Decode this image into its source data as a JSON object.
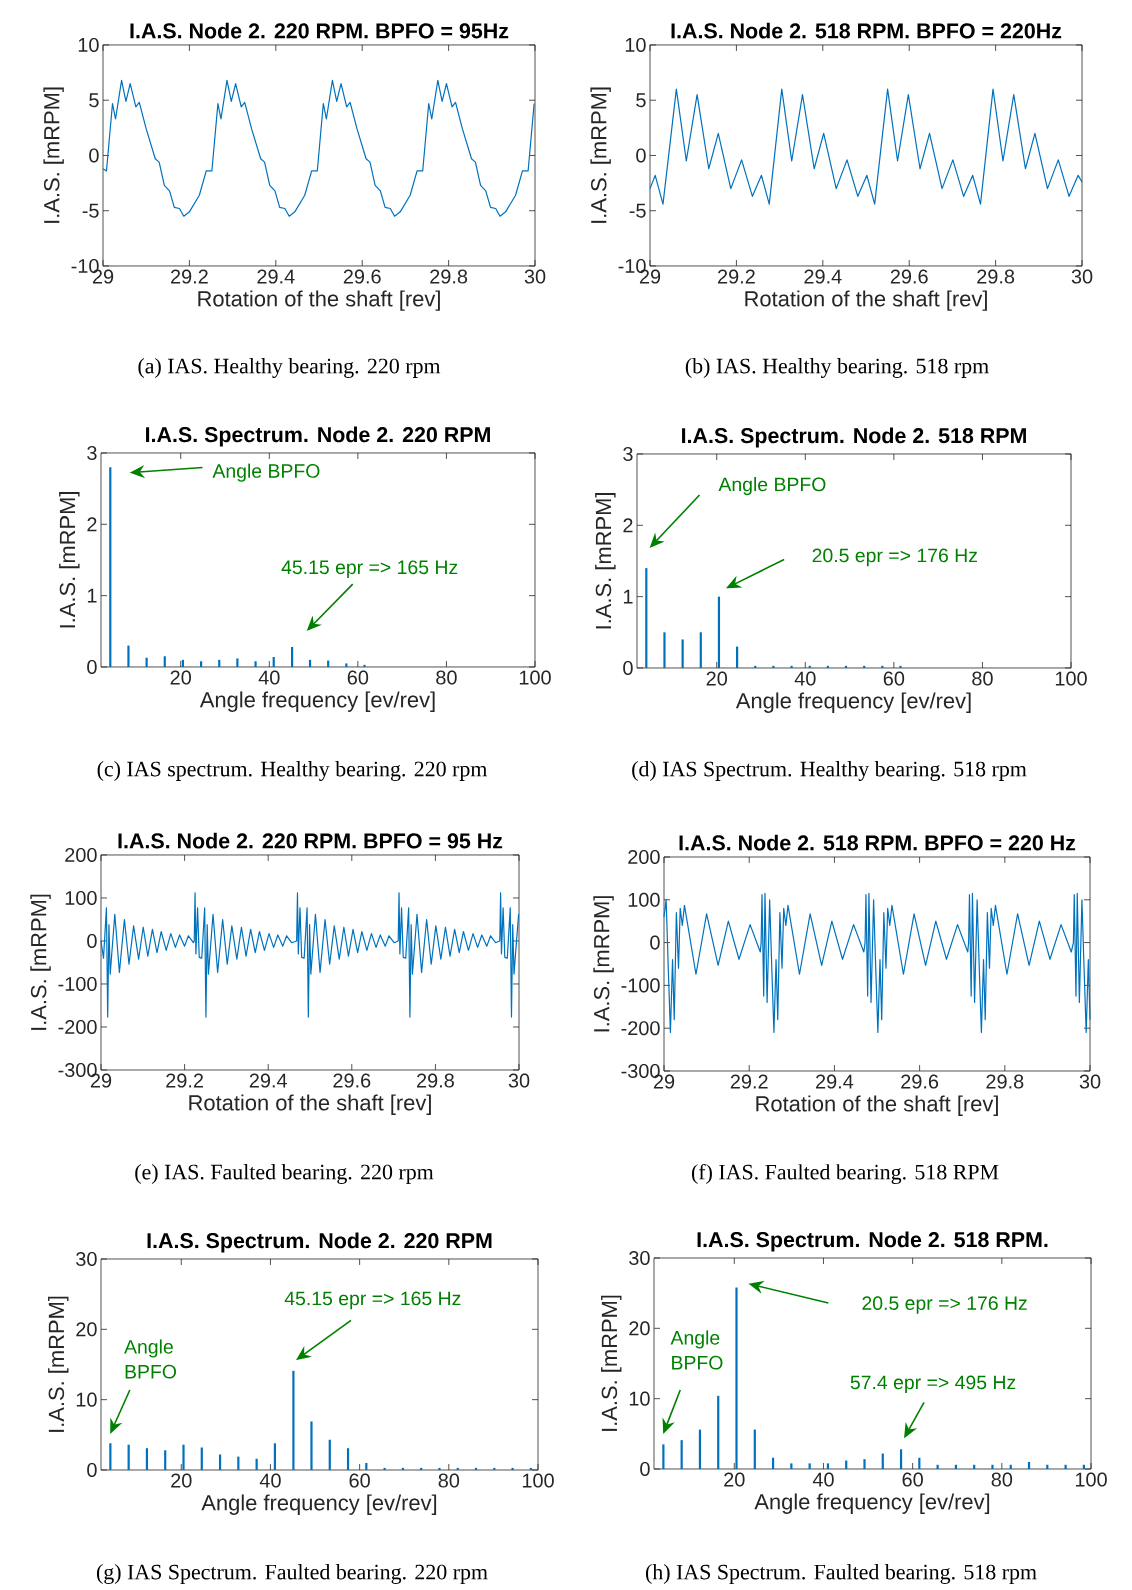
{
  "chart_data": [
    {
      "type": "line",
      "title": "I.A.S. Node 2. 220 RPM. BPFO = 95Hz",
      "xlabel": "Rotation of the shaft [rev]",
      "ylabel": "I.A.S. [mRPM]",
      "color": "#0072bd",
      "xlim": [
        29,
        30
      ],
      "ylim": [
        -10,
        10
      ],
      "xticks": [
        29,
        29.2,
        29.4,
        29.6,
        29.8,
        30
      ],
      "yticks": [
        -10,
        -5,
        0,
        5,
        10
      ],
      "x": [
        29.0,
        29.008,
        29.014,
        29.022,
        29.029,
        29.043,
        29.053,
        29.063,
        29.076,
        29.084,
        29.1,
        29.121,
        29.13,
        29.142,
        29.154,
        29.165,
        29.177,
        29.187,
        29.2,
        29.223,
        29.239,
        29.252,
        29.258,
        29.266,
        29.273,
        29.287,
        29.297,
        29.307,
        29.32,
        29.328,
        29.344,
        29.365,
        29.374,
        29.386,
        29.398,
        29.409,
        29.421,
        29.431,
        29.444,
        29.467,
        29.483,
        29.496,
        29.502,
        29.51,
        29.517,
        29.531,
        29.541,
        29.551,
        29.564,
        29.572,
        29.588,
        29.609,
        29.618,
        29.63,
        29.642,
        29.653,
        29.665,
        29.675,
        29.688,
        29.711,
        29.727,
        29.74,
        29.746,
        29.754,
        29.761,
        29.775,
        29.785,
        29.795,
        29.808,
        29.816,
        29.832,
        29.853,
        29.862,
        29.874,
        29.886,
        29.897,
        29.909,
        29.919,
        29.932,
        29.955,
        29.971,
        29.984,
        29.99,
        29.998
      ],
      "values": [
        -1.2,
        -1.4,
        1.2,
        4.7,
        3.3,
        6.8,
        4.9,
        6.5,
        4.4,
        4.8,
        2.4,
        -0.3,
        -0.6,
        -2.7,
        -3.2,
        -4.7,
        -4.8,
        -5.5,
        -5.1,
        -3.6,
        -1.4,
        -1.4,
        1.2,
        4.7,
        3.3,
        6.8,
        4.9,
        6.5,
        4.4,
        4.8,
        2.4,
        -0.3,
        -0.6,
        -2.7,
        -3.2,
        -4.7,
        -4.8,
        -5.5,
        -5.1,
        -3.6,
        -1.4,
        -1.4,
        1.2,
        4.7,
        3.3,
        6.8,
        4.9,
        6.5,
        4.4,
        4.8,
        2.4,
        -0.3,
        -0.6,
        -2.7,
        -3.2,
        -4.7,
        -4.8,
        -5.5,
        -5.1,
        -3.6,
        -1.4,
        -1.4,
        1.2,
        4.7,
        3.3,
        6.8,
        4.9,
        6.5,
        4.4,
        4.8,
        2.4,
        -0.3,
        -0.6,
        -2.7,
        -3.2,
        -4.7,
        -4.8,
        -5.5,
        -5.1,
        -3.6,
        -1.4,
        -1.4,
        1.2,
        4.7
      ],
      "annotations": [
        "(a)  IAS. Healthy bearing. 220 rpm"
      ]
    },
    {
      "type": "line",
      "title": "I.A.S. Node 2. 518 RPM. BPFO = 220Hz",
      "xlabel": "Rotation of the shaft [rev]",
      "ylabel": "I.A.S. [mRPM]",
      "color": "#0072bd",
      "xlim": [
        29,
        30
      ],
      "ylim": [
        -10,
        10
      ],
      "xticks": [
        29,
        29.2,
        29.4,
        29.6,
        29.8,
        30
      ],
      "yticks": [
        -10,
        -5,
        0,
        5,
        10
      ],
      "x": [
        29.0,
        29.012,
        29.03,
        29.061,
        29.084,
        29.109,
        29.136,
        29.158,
        29.187,
        29.212,
        29.237,
        29.258,
        29.276,
        29.305,
        29.328,
        29.353,
        29.38,
        29.402,
        29.431,
        29.456,
        29.481,
        29.502,
        29.52,
        29.55,
        29.573,
        29.598,
        29.625,
        29.647,
        29.676,
        29.701,
        29.726,
        29.747,
        29.765,
        29.794,
        29.817,
        29.842,
        29.869,
        29.891,
        29.92,
        29.945,
        29.97,
        29.991,
        30.0
      ],
      "values": [
        -3.0,
        -1.8,
        -4.4,
        6.0,
        -0.5,
        5.5,
        -1.2,
        2.0,
        -3.0,
        -0.4,
        -3.7,
        -1.8,
        -4.4,
        6.0,
        -0.5,
        5.5,
        -1.2,
        2.0,
        -3.0,
        -0.4,
        -3.7,
        -1.8,
        -4.4,
        6.0,
        -0.5,
        5.5,
        -1.2,
        2.0,
        -3.0,
        -0.4,
        -3.7,
        -1.8,
        -4.4,
        6.0,
        -0.5,
        5.5,
        -1.2,
        2.0,
        -3.0,
        -0.4,
        -3.7,
        -1.8,
        -2.4
      ],
      "annotations": [
        "(b)  IAS. Healthy bearing. 518 rpm"
      ]
    },
    {
      "type": "bar",
      "title": "I.A.S. Spectrum. Node 2. 220 RPM",
      "xlabel": "Angle frequency [ev/rev]",
      "ylabel": "I.A.S. [mRPM]",
      "color": "#0072bd",
      "xlim": [
        2,
        100
      ],
      "ylim": [
        0,
        3
      ],
      "xticks": [
        20,
        40,
        60,
        80,
        100
      ],
      "yticks": [
        0,
        1,
        2,
        3
      ],
      "x": [
        4.1,
        8.2,
        12.3,
        16.4,
        20.5,
        24.6,
        28.7,
        32.8,
        36.9,
        41.0,
        45.15,
        49.2,
        53.3,
        57.4,
        61.5
      ],
      "values": [
        2.8,
        0.3,
        0.13,
        0.15,
        0.1,
        0.08,
        0.1,
        0.12,
        0.08,
        0.14,
        0.28,
        0.1,
        0.09,
        0.05,
        0.03
      ],
      "annotations": [
        "Angle BPFO",
        "45.15 epr => 165 Hz",
        "(c)  IAS spectrum. Healthy bearing. 220 rpm"
      ]
    },
    {
      "type": "bar",
      "title": "I.A.S. Spectrum. Node 2. 518 RPM",
      "xlabel": "Angle frequency [ev/rev]",
      "ylabel": "I.A.S. [mRPM]",
      "color": "#0072bd",
      "xlim": [
        2,
        100
      ],
      "ylim": [
        0,
        3
      ],
      "xticks": [
        20,
        40,
        60,
        80,
        100
      ],
      "yticks": [
        0,
        1,
        2,
        3
      ],
      "x": [
        4.1,
        8.2,
        12.3,
        16.4,
        20.5,
        24.6,
        28.7,
        32.8,
        36.9,
        41.0,
        45.1,
        49.2,
        53.3,
        57.4,
        61.5
      ],
      "values": [
        1.4,
        0.5,
        0.4,
        0.5,
        1.0,
        0.3,
        0.03,
        0.03,
        0.03,
        0.03,
        0.03,
        0.03,
        0.03,
        0.03,
        0.03
      ],
      "annotations": [
        "Angle BPFO",
        "20.5 epr => 176 Hz",
        "(d)  IAS Spectrum. Healthy bearing. 518 rpm"
      ]
    },
    {
      "type": "line",
      "title": "I.A.S. Node 2. 220 RPM. BPFO = 95 Hz",
      "xlabel": "Rotation of the shaft [rev]",
      "ylabel": "I.A.S. [mRPM]",
      "color": "#0072bd",
      "xlim": [
        29,
        30
      ],
      "ylim": [
        -300,
        200
      ],
      "xticks": [
        29,
        29.2,
        29.4,
        29.6,
        29.8,
        30
      ],
      "yticks": [
        -300,
        -200,
        -100,
        0,
        100,
        200
      ],
      "x": [
        29.0,
        29.006,
        29.013,
        29.016,
        29.019,
        29.022,
        29.033,
        29.044,
        29.056,
        29.067,
        29.078,
        29.09,
        29.101,
        29.112,
        29.123,
        29.134,
        29.144,
        29.156,
        29.167,
        29.178,
        29.188,
        29.2,
        29.209,
        29.221,
        29.223,
        29.225,
        29.227,
        29.231,
        29.235,
        29.241,
        29.248,
        29.251,
        29.254,
        29.257,
        29.268,
        29.279,
        29.291,
        29.302,
        29.313,
        29.325,
        29.336,
        29.347,
        29.358,
        29.369,
        29.379,
        29.391,
        29.402,
        29.413,
        29.423,
        29.435,
        29.444,
        29.456,
        29.468,
        29.47,
        29.472,
        29.476,
        29.48,
        29.486,
        29.493,
        29.496,
        29.499,
        29.502,
        29.513,
        29.524,
        29.536,
        29.547,
        29.558,
        29.57,
        29.581,
        29.592,
        29.603,
        29.614,
        29.624,
        29.636,
        29.647,
        29.658,
        29.668,
        29.68,
        29.689,
        29.701,
        29.711,
        29.713,
        29.715,
        29.719,
        29.723,
        29.729,
        29.736,
        29.739,
        29.742,
        29.745,
        29.756,
        29.767,
        29.779,
        29.79,
        29.801,
        29.813,
        29.824,
        29.835,
        29.846,
        29.857,
        29.867,
        29.879,
        29.89,
        29.901,
        29.911,
        29.923,
        29.932,
        29.944,
        29.954,
        29.956,
        29.958,
        29.962,
        29.966,
        29.972,
        29.979,
        29.982,
        29.985,
        29.988,
        29.999
      ],
      "values": [
        0,
        -40,
        77,
        -177,
        38,
        -77,
        62,
        -73,
        50,
        -54,
        35,
        -42,
        32,
        -35,
        27,
        -27,
        22,
        -22,
        17,
        -15,
        14,
        -12,
        12,
        -4,
        0,
        112,
        -30,
        77,
        -38,
        -40,
        77,
        -177,
        38,
        -77,
        62,
        -73,
        50,
        -54,
        35,
        -42,
        32,
        -35,
        27,
        -27,
        22,
        -22,
        17,
        -15,
        14,
        -12,
        12,
        -4,
        0,
        112,
        -30,
        77,
        -38,
        -40,
        77,
        -177,
        38,
        -77,
        62,
        -73,
        50,
        -54,
        35,
        -42,
        32,
        -35,
        27,
        -27,
        22,
        -22,
        17,
        -15,
        14,
        -12,
        12,
        -4,
        0,
        112,
        -30,
        77,
        -38,
        -40,
        77,
        -177,
        38,
        -77,
        62,
        -73,
        50,
        -54,
        35,
        -42,
        32,
        -35,
        27,
        -27,
        22,
        -22,
        17,
        -15,
        14,
        -12,
        12,
        -4,
        0,
        112,
        -30,
        77,
        -38,
        -40,
        77,
        -177,
        38,
        -77,
        62
      ],
      "annotations": [
        "(e)  IAS. Faulted bearing. 220 rpm"
      ]
    },
    {
      "type": "line",
      "title": "I.A.S. Node 2. 518 RPM. BPFO = 220 Hz",
      "xlabel": "Rotation of the shaft [rev]",
      "ylabel": "I.A.S. [mRPM]",
      "color": "#0072bd",
      "xlim": [
        29,
        30
      ],
      "ylim": [
        -300,
        200
      ],
      "xticks": [
        29,
        29.2,
        29.4,
        29.6,
        29.8,
        30
      ],
      "yticks": [
        -300,
        -200,
        -100,
        0,
        100,
        200
      ],
      "x": [
        29.0,
        29.005,
        29.01,
        29.015,
        29.02,
        29.024,
        29.029,
        29.034,
        29.038,
        29.043,
        29.048,
        29.075,
        29.1,
        29.127,
        29.151,
        29.176,
        29.202,
        29.226,
        29.228,
        29.23,
        29.234,
        29.237,
        29.242,
        29.248,
        29.253,
        29.258,
        29.263,
        29.267,
        29.272,
        29.277,
        29.281,
        29.286,
        29.291,
        29.318,
        29.343,
        29.37,
        29.394,
        29.419,
        29.445,
        29.469,
        29.472,
        29.474,
        29.478,
        29.481,
        29.486,
        29.492,
        29.497,
        29.502,
        29.507,
        29.511,
        29.516,
        29.521,
        29.525,
        29.53,
        29.535,
        29.562,
        29.587,
        29.614,
        29.638,
        29.663,
        29.689,
        29.713,
        29.715,
        29.717,
        29.721,
        29.724,
        29.729,
        29.735,
        29.74,
        29.745,
        29.75,
        29.754,
        29.759,
        29.764,
        29.768,
        29.773,
        29.778,
        29.805,
        29.83,
        29.857,
        29.881,
        29.906,
        29.932,
        29.956,
        29.961,
        29.963,
        29.967,
        29.97,
        29.975,
        29.981,
        29.986,
        29.991,
        29.996,
        30.0
      ],
      "values": [
        60,
        100,
        -60,
        -210,
        -40,
        -180,
        70,
        -60,
        80,
        40,
        87,
        -74,
        67,
        -53,
        50,
        -39,
        42,
        -22,
        0,
        112,
        -125,
        115,
        -140,
        100,
        -60,
        -210,
        -40,
        -180,
        70,
        -60,
        80,
        40,
        87,
        -74,
        67,
        -53,
        50,
        -39,
        42,
        -22,
        0,
        112,
        -125,
        115,
        -140,
        100,
        -60,
        -210,
        -40,
        -180,
        70,
        -60,
        80,
        40,
        87,
        -74,
        67,
        -53,
        50,
        -39,
        42,
        -22,
        0,
        112,
        -125,
        115,
        -140,
        100,
        -60,
        -210,
        -40,
        -180,
        70,
        -60,
        80,
        40,
        87,
        -74,
        67,
        -53,
        50,
        -39,
        42,
        -22,
        0,
        112,
        -125,
        115,
        -140,
        100,
        -60,
        -210,
        -40,
        -180
      ],
      "annotations": [
        "(f)  IAS. Faulted bearing. 518 RPM"
      ]
    },
    {
      "type": "bar",
      "title": "I.A.S. Spectrum. Node 2. 220 RPM",
      "xlabel": "Angle frequency [ev/rev]",
      "ylabel": "I.A.S. [mRPM]",
      "color": "#0072bd",
      "xlim": [
        2,
        100
      ],
      "ylim": [
        0,
        30
      ],
      "xticks": [
        20,
        40,
        60,
        80,
        100
      ],
      "yticks": [
        0,
        10,
        20,
        30
      ],
      "x": [
        4.1,
        8.2,
        12.3,
        16.4,
        20.5,
        24.6,
        28.7,
        32.8,
        36.9,
        41.0,
        45.15,
        49.2,
        53.3,
        57.4,
        61.5,
        65.6,
        69.7,
        73.8,
        77.9,
        82.0,
        86.1,
        90.2,
        94.3,
        98.4
      ],
      "values": [
        3.8,
        3.6,
        3.1,
        2.8,
        3.6,
        3.2,
        2.2,
        1.9,
        1.6,
        3.8,
        14.1,
        6.9,
        4.3,
        3.1,
        1.0,
        0.3,
        0.3,
        0.3,
        0.3,
        0.3,
        0.3,
        0.3,
        0.3,
        0.3
      ],
      "annotations": [
        "Angle BPFO",
        "45.15 epr => 165 Hz",
        "(g)  IAS Spectrum. Faulted bearing. 220 rpm"
      ]
    },
    {
      "type": "bar",
      "title": "I.A.S. Spectrum. Node 2. 518 RPM.",
      "xlabel": "Angle frequency [ev/rev]",
      "ylabel": "I.A.S. [mRPM]",
      "color": "#0072bd",
      "xlim": [
        2,
        100
      ],
      "ylim": [
        0,
        30
      ],
      "xticks": [
        20,
        40,
        60,
        80,
        100
      ],
      "yticks": [
        0,
        10,
        20,
        30
      ],
      "x": [
        4.1,
        8.2,
        12.3,
        16.4,
        20.5,
        24.6,
        28.7,
        32.8,
        36.9,
        41.0,
        45.1,
        49.2,
        53.3,
        57.4,
        61.5,
        65.6,
        69.7,
        73.8,
        77.9,
        82.0,
        86.1,
        90.2,
        94.3,
        98.4
      ],
      "values": [
        3.5,
        4.1,
        5.6,
        10.4,
        25.8,
        5.6,
        1.6,
        0.8,
        0.8,
        0.8,
        1.2,
        1.4,
        2.2,
        2.8,
        1.6,
        0.6,
        0.6,
        0.6,
        0.6,
        0.6,
        1.0,
        0.6,
        0.6,
        0.6
      ],
      "annotations": [
        "Angle BPFO",
        "20.5 epr => 176 Hz",
        {
          "text": "57.4 epr => 495 Hz",
          "x": 57.4,
          "y": 2.8
        },
        "(h)  IAS Spectrum. Faulted bearing. 518 rpm"
      ]
    }
  ]
}
